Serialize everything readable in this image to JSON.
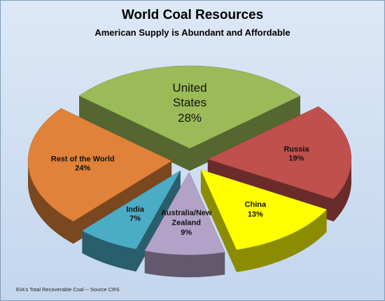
{
  "chart_data": {
    "type": "pie3d",
    "title": "World Coal Resources",
    "subtitle": "American Supply is Abundant and Affordable",
    "note": "EIA's Total Recoverable Coal -- Source CRS",
    "categories": [
      "United States",
      "Russia",
      "China",
      "Australia/New Zealand",
      "India",
      "Rest of the World"
    ],
    "values": [
      28,
      19,
      13,
      9,
      7,
      24
    ],
    "value_labels": [
      "28%",
      "19%",
      "13%",
      "9%",
      "7%",
      "24%"
    ],
    "colors": [
      "#9bbb59",
      "#c0504d",
      "#ffff00",
      "#b3a2c7",
      "#4bacc6",
      "#e0823a"
    ]
  }
}
